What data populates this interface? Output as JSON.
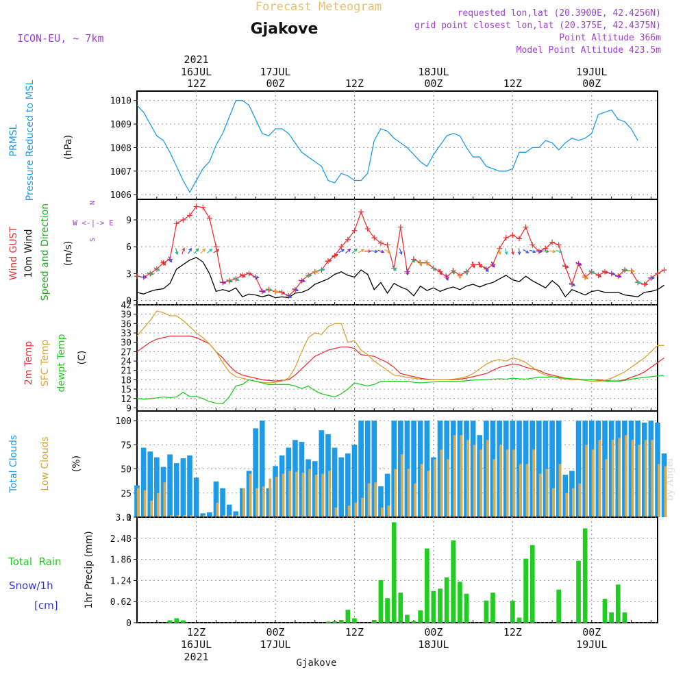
{
  "header": {
    "product_title": "Forecast Meteogram",
    "location": "Gjakove",
    "model": "ICON-EU, ~ 7km",
    "requested": "requested lon,lat (20.3900E, 42.4256N)",
    "gridpoint": "grid point closest lon,lat (20.375E, 42.4375N)",
    "point_altitude": "Point Altitude 366m",
    "model_altitude": "Model Point Altitude 423.5m",
    "footer_location": "Gjakove",
    "watermark": "by Angel"
  },
  "time_axis": {
    "top_year": "2021",
    "bottom_year": "2021",
    "ticks": [
      {
        "hour": 12,
        "top": [
          "16JUL",
          "12Z"
        ],
        "bottom": [
          "12Z",
          "16JUL"
        ]
      },
      {
        "hour": 24,
        "top": [
          "17JUL",
          "00Z"
        ],
        "bottom": [
          "00Z",
          "17JUL"
        ]
      },
      {
        "hour": 36,
        "top": [
          "",
          "12Z"
        ],
        "bottom": [
          "12Z",
          ""
        ]
      },
      {
        "hour": 48,
        "top": [
          "18JUL",
          "00Z"
        ],
        "bottom": [
          "00Z",
          "18JUL"
        ]
      },
      {
        "hour": 60,
        "top": [
          "",
          "12Z"
        ],
        "bottom": [
          "12Z",
          ""
        ]
      },
      {
        "hour": 72,
        "top": [
          "19JUL",
          "00Z"
        ],
        "bottom": [
          "00Z",
          "19JUL"
        ]
      }
    ]
  },
  "colors": {
    "pressure": "#1e9be8",
    "gust": "#e83434",
    "wind": "#000000",
    "direction_label": "#22aa22",
    "t2m": "#e83434",
    "sfc": "#d9a233",
    "dew": "#22cc22",
    "total_cloud": "#1e9be8",
    "low_cloud": "#d4ac55",
    "rain": "#22cc22",
    "snow": "#3333dd",
    "axis_purple": "#a040d0",
    "title_gold": "#e8c070"
  },
  "labels": {
    "pressure": [
      "PRMSL",
      "Pressure Reduced to MSL",
      "(hPa)"
    ],
    "wind": [
      "Wind GUST",
      "10m Wind",
      "Speed and Direction",
      "(m/s)"
    ],
    "compass": [
      "N",
      "W <-|-> E",
      "S"
    ],
    "temp": [
      "2m Temp",
      "SFC Temp",
      "dewpt Temp",
      "(C)"
    ],
    "cloud": [
      "Total Clouds",
      "Low Clouds",
      "(%)"
    ],
    "precip": [
      "Total  Rain",
      "Snow/1h",
      "[cm]",
      "1hr Precip (mm)"
    ]
  },
  "chart_data": [
    {
      "type": "line",
      "name": "pressure",
      "x_start_hour": 3,
      "x_step_hours": 1,
      "xlim": [
        3,
        82
      ],
      "ylim": [
        1005.8,
        1010.4
      ],
      "yticks": [
        1006,
        1007,
        1008,
        1009,
        1010
      ],
      "series": [
        {
          "name": "PRMSL",
          "values": [
            1009.8,
            1009.5,
            1009.0,
            1008.5,
            1008.3,
            1007.8,
            1007.2,
            1006.6,
            1006.1,
            1006.6,
            1007.1,
            1007.4,
            1008.1,
            1008.6,
            1009.3,
            1010.0,
            1010.0,
            1009.8,
            1009.2,
            1008.6,
            1008.5,
            1008.8,
            1008.8,
            1008.6,
            1008.2,
            1007.8,
            1007.6,
            1007.4,
            1007.2,
            1006.6,
            1006.5,
            1006.9,
            1006.8,
            1006.6,
            1006.6,
            1006.9,
            1008.3,
            1008.8,
            1008.7,
            1008.4,
            1008.2,
            1008.0,
            1007.7,
            1007.4,
            1007.2,
            1007.7,
            1008.1,
            1008.5,
            1008.6,
            1008.5,
            1008.0,
            1007.6,
            1007.6,
            1007.2,
            1007.1,
            1007.0,
            1007.0,
            1007.1,
            1007.8,
            1007.8,
            1008.0,
            1008.0,
            1008.3,
            1008.2,
            1007.9,
            1008.2,
            1008.4,
            1008.3,
            1008.4,
            1008.6,
            1009.4,
            1009.5,
            1009.6,
            1009.2,
            1009.1,
            1008.8,
            1008.3
          ]
        }
      ]
    },
    {
      "type": "line",
      "name": "wind",
      "x_start_hour": 3,
      "x_step_hours": 1,
      "xlim": [
        3,
        82
      ],
      "ylim": [
        -0.5,
        11.3
      ],
      "yticks": [
        0,
        3,
        6,
        9
      ],
      "series": [
        {
          "name": "Wind GUST",
          "values": [
            2.7,
            2.6,
            3.0,
            3.5,
            4.2,
            4.6,
            8.6,
            9.0,
            9.5,
            10.5,
            10.4,
            9.2,
            6.0,
            2.0,
            2.2,
            2.4,
            2.8,
            3.0,
            2.6,
            1.0,
            1.2,
            1.0,
            0.9,
            0.5,
            1.2,
            2.2,
            2.8,
            3.2,
            3.4,
            4.4,
            5.0,
            6.0,
            6.8,
            7.8,
            9.9,
            8.0,
            7.0,
            6.4,
            6.2,
            3.6,
            8.2,
            3.2,
            4.6,
            4.2,
            4.2,
            3.6,
            3.2,
            2.6,
            3.3,
            2.8,
            3.2,
            4.0,
            4.0,
            3.5,
            4.0,
            5.8,
            7.0,
            7.3,
            6.9,
            8.2,
            6.2,
            5.5,
            5.8,
            6.5,
            6.2,
            3.8,
            1.8,
            4.1,
            2.6,
            3.2,
            2.8,
            3.2,
            3.0,
            2.7,
            3.4,
            3.3,
            2.0,
            1.8,
            2.5,
            3.0,
            3.4
          ]
        },
        {
          "name": "10m Wind",
          "values": [
            0.9,
            0.7,
            1.0,
            1.2,
            1.3,
            1.9,
            3.5,
            4.0,
            4.5,
            4.8,
            4.3,
            3.0,
            1.0,
            1.2,
            1.0,
            1.4,
            0.4,
            0.7,
            0.6,
            0.4,
            0.6,
            0.3,
            0.4,
            0.3,
            0.8,
            0.9,
            1.2,
            1.8,
            2.1,
            2.4,
            2.9,
            3.2,
            2.8,
            2.6,
            3.4,
            2.9,
            1.2,
            2.0,
            0.8,
            1.9,
            1.5,
            1.2,
            0.5,
            1.6,
            1.1,
            1.4,
            1.0,
            1.3,
            1.5,
            1.2,
            1.6,
            1.8,
            1.5,
            1.8,
            2.0,
            2.4,
            2.8,
            2.3,
            2.1,
            2.7,
            2.2,
            1.8,
            1.4,
            2.2,
            1.6,
            0.4,
            1.2,
            0.9,
            0.6,
            1.0,
            1.1,
            0.9,
            0.9,
            0.9,
            0.6,
            0.5,
            0.4,
            0.9,
            1.0,
            1.2,
            1.7
          ]
        }
      ],
      "barbs_every_hours": 1,
      "barb_start_hour": 4,
      "wind_dir_deg": [
        270,
        285,
        300,
        315,
        330,
        345,
        200,
        210,
        220,
        225,
        230,
        240,
        280,
        290,
        300,
        300,
        290,
        280,
        280,
        285,
        290,
        300,
        300,
        290,
        280,
        270,
        270,
        260,
        260,
        250,
        240,
        230,
        230,
        240,
        270,
        280,
        290,
        300,
        320,
        340,
        350,
        355,
        340,
        320,
        320,
        330,
        340,
        350,
        355,
        350,
        340,
        330,
        320,
        330,
        340,
        345,
        350,
        355,
        300,
        290,
        280,
        280,
        280,
        285,
        290,
        290,
        295,
        300,
        300,
        300,
        290,
        285,
        280,
        280,
        275,
        275,
        270,
        270
      ]
    },
    {
      "type": "line",
      "name": "temperature",
      "x_start_hour": 3,
      "x_step_hours": 1,
      "xlim": [
        3,
        82
      ],
      "ylim": [
        8,
        42
      ],
      "yticks": [
        9,
        12,
        15,
        18,
        21,
        24,
        27,
        30,
        33,
        36,
        39,
        42
      ],
      "series": [
        {
          "name": "2m Temp",
          "values": [
            27.0,
            28.5,
            30.0,
            31.0,
            31.5,
            32.0,
            32.0,
            32.0,
            32.0,
            31.5,
            30.5,
            29.5,
            27.0,
            25.0,
            22.5,
            20.5,
            19.5,
            19.0,
            18.5,
            18.0,
            17.8,
            17.6,
            17.8,
            18.0,
            19.5,
            21.5,
            23.5,
            25.5,
            26.5,
            27.5,
            28.0,
            28.5,
            28.5,
            28.0,
            26.0,
            25.8,
            25.5,
            24.5,
            23.5,
            22.0,
            20.0,
            19.5,
            19.0,
            18.5,
            18.2,
            18.0,
            18.0,
            18.0,
            18.0,
            18.2,
            18.5,
            19.0,
            19.5,
            20.0,
            21.0,
            22.0,
            22.5,
            23.0,
            22.8,
            22.0,
            21.5,
            21.0,
            20.0,
            19.5,
            19.0,
            18.5,
            18.3,
            18.2,
            18.0,
            18.0,
            18.0,
            17.8,
            17.6,
            17.6,
            18.0,
            18.8,
            19.5,
            20.5,
            22.0,
            23.5,
            25.0
          ]
        },
        {
          "name": "SFC Temp",
          "values": [
            32.0,
            34.5,
            37.0,
            40.0,
            39.5,
            38.5,
            38.5,
            37.0,
            35.0,
            33.0,
            31.5,
            29.5,
            27.0,
            23.5,
            20.5,
            19.0,
            18.5,
            18.0,
            17.5,
            17.2,
            17.0,
            17.2,
            17.6,
            18.5,
            22.0,
            27.0,
            31.5,
            33.0,
            32.5,
            35.0,
            36.0,
            36.0,
            30.0,
            30.5,
            27.5,
            26.0,
            24.0,
            22.5,
            21.0,
            19.5,
            19.2,
            18.8,
            18.5,
            18.2,
            18.0,
            18.0,
            18.0,
            18.0,
            18.2,
            18.5,
            19.0,
            20.0,
            21.5,
            23.0,
            24.0,
            24.5,
            24.0,
            25.0,
            24.5,
            23.5,
            22.0,
            20.5,
            19.5,
            19.0,
            18.5,
            18.2,
            18.0,
            18.0,
            17.8,
            17.5,
            17.5,
            17.8,
            18.5,
            19.5,
            20.5,
            22.0,
            23.5,
            25.0,
            27.0,
            29.0,
            29.0
          ]
        },
        {
          "name": "dewpt Temp",
          "values": [
            12.0,
            11.8,
            12.0,
            12.2,
            12.5,
            12.3,
            12.5,
            14.0,
            12.6,
            12.7,
            12.0,
            11.0,
            10.5,
            10.3,
            12.5,
            16.0,
            16.5,
            18.0,
            17.5,
            17.0,
            16.5,
            16.5,
            16.5,
            16.5,
            16.0,
            15.2,
            16.0,
            14.5,
            13.5,
            13.0,
            12.5,
            13.5,
            15.0,
            17.0,
            16.5,
            16.0,
            16.5,
            17.5,
            17.5,
            17.5,
            17.5,
            17.5,
            17.2,
            17.0,
            17.2,
            17.3,
            17.5,
            17.5,
            17.5,
            17.5,
            17.7,
            17.9,
            18.0,
            18.0,
            18.2,
            18.3,
            18.2,
            18.5,
            18.3,
            18.2,
            18.5,
            18.8,
            18.8,
            19.0,
            18.7,
            18.5,
            18.3,
            18.2,
            18.0,
            18.0,
            17.8,
            17.6,
            17.5,
            17.5,
            17.8,
            18.2,
            18.5,
            18.8,
            19.0,
            19.2,
            19.3
          ]
        }
      ]
    },
    {
      "type": "bar",
      "name": "clouds",
      "x_start_hour": 3,
      "x_step_hours": 1,
      "xlim": [
        3,
        82
      ],
      "ylim": [
        0,
        110
      ],
      "yticks": [
        0,
        25,
        50,
        75,
        100
      ],
      "series": [
        {
          "name": "Total Clouds",
          "values": [
            33,
            72,
            68,
            62,
            52,
            65,
            56,
            61,
            64,
            41,
            4,
            5,
            37,
            30,
            13,
            6,
            30,
            48,
            92,
            100,
            30,
            53,
            64,
            72,
            80,
            78,
            60,
            58,
            90,
            86,
            72,
            62,
            66,
            75,
            100,
            100,
            100,
            32,
            45,
            100,
            100,
            100,
            100,
            100,
            100,
            62,
            100,
            100,
            100,
            100,
            100,
            100,
            85,
            100,
            100,
            100,
            100,
            100,
            100,
            100,
            100,
            100,
            100,
            100,
            100,
            44,
            48,
            100,
            100,
            100,
            100,
            100,
            100,
            100,
            100,
            100,
            100,
            98,
            100,
            98,
            66
          ]
        },
        {
          "name": "Low Clouds",
          "values": [
            30,
            28,
            17,
            25,
            36,
            2,
            2,
            2,
            2,
            0,
            2,
            0,
            15,
            2,
            2,
            2,
            30,
            45,
            30,
            32,
            40,
            42,
            45,
            48,
            47,
            46,
            50,
            44,
            45,
            48,
            10,
            0,
            12,
            15,
            20,
            35,
            36,
            10,
            12,
            50,
            65,
            50,
            35,
            55,
            48,
            60,
            70,
            60,
            85,
            85,
            80,
            75,
            70,
            80,
            60,
            75,
            70,
            70,
            55,
            55,
            70,
            45,
            50,
            30,
            55,
            25,
            30,
            35,
            75,
            70,
            80,
            60,
            80,
            82,
            85,
            80,
            75,
            80,
            80,
            55,
            53
          ]
        }
      ]
    },
    {
      "type": "bar",
      "name": "precipitation",
      "x_start_hour": 3,
      "x_step_hours": 1,
      "xlim": [
        3,
        82
      ],
      "ylim": [
        0,
        3.1
      ],
      "yticks": [
        0,
        0.62,
        1.24,
        1.86,
        2.48,
        3.1
      ],
      "series": [
        {
          "name": "Total Rain",
          "values": [
            0,
            0,
            0,
            0,
            0,
            0.07,
            0.13,
            0.07,
            0,
            0,
            0,
            0,
            0,
            0,
            0,
            0,
            0,
            0,
            0,
            0,
            0,
            0,
            0,
            0,
            0,
            0,
            0,
            0,
            0,
            0.03,
            0.04,
            0.08,
            0.38,
            0.13,
            0,
            0,
            0.08,
            1.25,
            0.72,
            2.95,
            0.88,
            0.23,
            0.05,
            0.36,
            2.18,
            0.93,
            1.0,
            1.33,
            2.42,
            1.2,
            0.85,
            0,
            0,
            0.65,
            0.88,
            0,
            0,
            0.65,
            0.15,
            1.88,
            2.28,
            0,
            0,
            0,
            0.97,
            0,
            0,
            1.82,
            2.77,
            0,
            0,
            0.7,
            0.3,
            1.12,
            0.3,
            0,
            0,
            0,
            0,
            0,
            0
          ]
        },
        {
          "name": "Snow/1h",
          "values": [
            0,
            0,
            0,
            0,
            0,
            0,
            0,
            0,
            0,
            0,
            0,
            0,
            0,
            0,
            0,
            0,
            0,
            0,
            0,
            0,
            0,
            0,
            0,
            0,
            0,
            0,
            0,
            0,
            0,
            0,
            0,
            0,
            0,
            0,
            0,
            0,
            0,
            0,
            0,
            0,
            0,
            0,
            0,
            0,
            0,
            0,
            0,
            0,
            0,
            0,
            0,
            0,
            0,
            0,
            0,
            0,
            0,
            0,
            0,
            0,
            0,
            0,
            0,
            0,
            0,
            0,
            0,
            0,
            0,
            0,
            0,
            0,
            0,
            0,
            0,
            0,
            0,
            0,
            0,
            0,
            0
          ]
        }
      ]
    }
  ]
}
